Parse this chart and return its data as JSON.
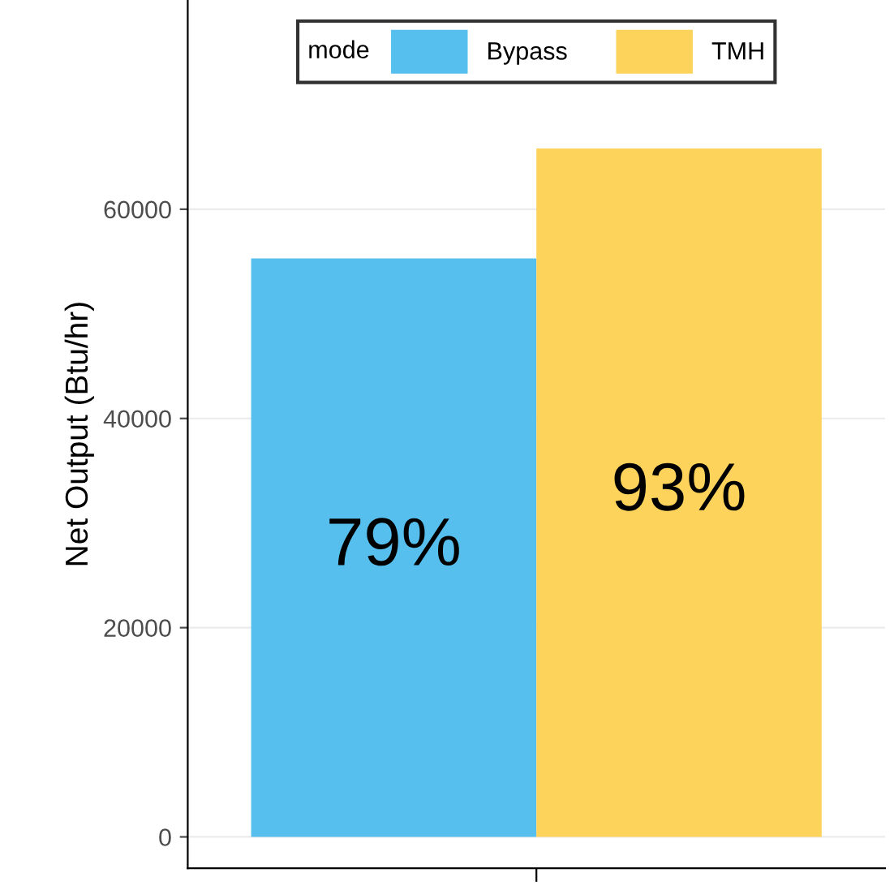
{
  "chart_data": {
    "type": "bar",
    "ylabel": "Net Output (Btu/hr)",
    "legend_title": "mode",
    "categories": [
      null
    ],
    "series": [
      {
        "name": "Bypass",
        "color": "#56bfee",
        "values": [
          55300
        ]
      },
      {
        "name": "TMH",
        "color": "#fdd35b",
        "values": [
          65800
        ]
      }
    ],
    "annotations": [
      "79%",
      "93%"
    ],
    "ylim": [
      -3000,
      80000
    ],
    "yticks": [
      0,
      20000,
      40000,
      60000
    ],
    "grid": "y",
    "legend": "top"
  }
}
